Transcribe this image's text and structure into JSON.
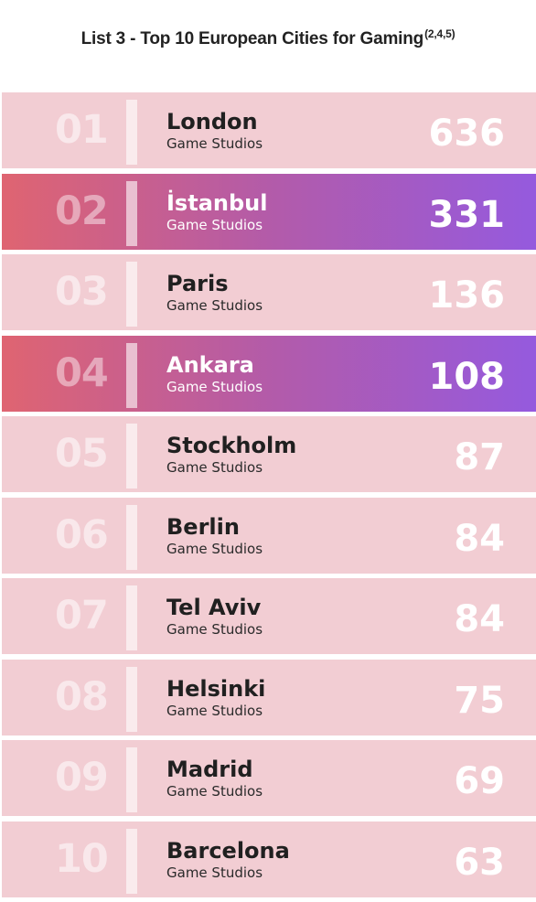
{
  "title": "List 3 - Top 10 European Cities for Gaming",
  "title_refs": "(2,4,5)",
  "colors": {
    "row_bg": "#f2cdd3",
    "highlight_start": "#df6471",
    "highlight_end": "#955ade"
  },
  "chart_data": {
    "type": "table",
    "title": "List 3 - Top 10 European Cities for Gaming",
    "value_label": "Game Studios",
    "rows": [
      {
        "rank": "01",
        "city": "London",
        "label": "Game Studios",
        "value": "636",
        "highlight": false
      },
      {
        "rank": "02",
        "city": "İstanbul",
        "label": "Game Studios",
        "value": "331",
        "highlight": true
      },
      {
        "rank": "03",
        "city": "Paris",
        "label": "Game Studios",
        "value": "136",
        "highlight": false
      },
      {
        "rank": "04",
        "city": "Ankara",
        "label": "Game Studios",
        "value": "108",
        "highlight": true
      },
      {
        "rank": "05",
        "city": "Stockholm",
        "label": "Game Studios",
        "value": "87",
        "highlight": false
      },
      {
        "rank": "06",
        "city": "Berlin",
        "label": "Game Studios",
        "value": "84",
        "highlight": false
      },
      {
        "rank": "07",
        "city": "Tel Aviv",
        "label": "Game Studios",
        "value": "84",
        "highlight": false
      },
      {
        "rank": "08",
        "city": "Helsinki",
        "label": "Game Studios",
        "value": "75",
        "highlight": false
      },
      {
        "rank": "09",
        "city": "Madrid",
        "label": "Game Studios",
        "value": "69",
        "highlight": false
      },
      {
        "rank": "10",
        "city": "Barcelona",
        "label": "Game Studios",
        "value": "63",
        "highlight": false
      }
    ]
  }
}
